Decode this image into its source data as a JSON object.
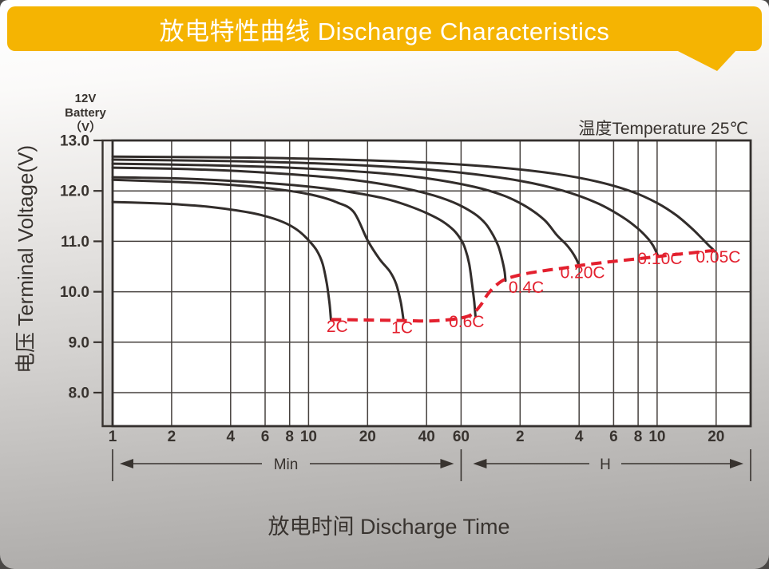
{
  "header": {
    "title": "放电特性曲线 Discharge Characteristics",
    "banner_color": "#F5B402",
    "text_color": "#FFFFFF"
  },
  "chart_data": {
    "type": "line",
    "title_note": "温度Temperature 25℃",
    "battery_label": [
      "12V",
      "Battery",
      "（V）"
    ],
    "y_axis_label": "电压 Terminal Voltage(V)",
    "x_axis_label": "放电时间 Discharge Time",
    "x_unit_left": "Min",
    "x_unit_right": "H",
    "x_scale": "log",
    "x_range_min": [
      1,
      1800
    ],
    "y_range": [
      7.3,
      13.0
    ],
    "grid": true,
    "x_gridlines_min": [
      1,
      2,
      4,
      6,
      8,
      10,
      20,
      40,
      60,
      120,
      240,
      360,
      480,
      600,
      1200
    ],
    "x_ticks": [
      {
        "t": 1,
        "label": "1"
      },
      {
        "t": 2,
        "label": "2"
      },
      {
        "t": 4,
        "label": "4"
      },
      {
        "t": 6,
        "label": "6"
      },
      {
        "t": 8,
        "label": "8"
      },
      {
        "t": 10,
        "label": "10"
      },
      {
        "t": 20,
        "label": "20"
      },
      {
        "t": 40,
        "label": "40"
      },
      {
        "t": 60,
        "label": "60"
      },
      {
        "t": 120,
        "label": "2"
      },
      {
        "t": 240,
        "label": "4"
      },
      {
        "t": 360,
        "label": "6"
      },
      {
        "t": 480,
        "label": "8"
      },
      {
        "t": 600,
        "label": "10"
      },
      {
        "t": 1200,
        "label": "20"
      }
    ],
    "y_ticks": [
      {
        "v": 13.0,
        "label": "13.0"
      },
      {
        "v": 12.0,
        "label": "12.0"
      },
      {
        "v": 11.0,
        "label": "11.0"
      },
      {
        "v": 10.0,
        "label": "10.0"
      },
      {
        "v": 9.0,
        "label": "9.0"
      },
      {
        "v": 8.0,
        "label": "8.0"
      }
    ],
    "colors": {
      "curve": "#322d2b",
      "grid": "#46413e",
      "cutoff": "#e3202e",
      "text": "#38332f"
    },
    "series": [
      {
        "name": "2C",
        "label_t": 14,
        "label_v": 9.2,
        "points": [
          [
            1,
            11.78
          ],
          [
            1.5,
            11.76
          ],
          [
            2,
            11.74
          ],
          [
            3,
            11.69
          ],
          [
            4,
            11.63
          ],
          [
            5,
            11.57
          ],
          [
            6,
            11.5
          ],
          [
            7,
            11.42
          ],
          [
            8,
            11.32
          ],
          [
            9,
            11.19
          ],
          [
            10,
            11.02
          ],
          [
            11,
            10.82
          ],
          [
            11.8,
            10.55
          ],
          [
            12.4,
            10.15
          ],
          [
            12.8,
            9.75
          ],
          [
            13,
            9.45
          ]
        ]
      },
      {
        "name": "1C",
        "label_t": 30,
        "label_v": 9.18,
        "points": [
          [
            1,
            12.22
          ],
          [
            2,
            12.18
          ],
          [
            3,
            12.15
          ],
          [
            5,
            12.09
          ],
          [
            8,
            12.0
          ],
          [
            11,
            11.9
          ],
          [
            14,
            11.77
          ],
          [
            17,
            11.58
          ],
          [
            20,
            11.02
          ],
          [
            23,
            10.65
          ],
          [
            26,
            10.4
          ],
          [
            28,
            10.15
          ],
          [
            29.5,
            9.8
          ],
          [
            30.5,
            9.44
          ]
        ]
      },
      {
        "name": "0.6C",
        "label_t": 64,
        "label_v": 9.3,
        "points": [
          [
            1,
            12.27
          ],
          [
            2,
            12.25
          ],
          [
            4,
            12.2
          ],
          [
            7,
            12.14
          ],
          [
            12,
            12.05
          ],
          [
            18,
            11.95
          ],
          [
            25,
            11.84
          ],
          [
            32,
            11.71
          ],
          [
            40,
            11.56
          ],
          [
            48,
            11.4
          ],
          [
            55,
            11.22
          ],
          [
            60,
            11.03
          ],
          [
            63,
            10.85
          ],
          [
            66,
            10.55
          ],
          [
            68.5,
            10.1
          ],
          [
            70,
            9.8
          ],
          [
            71,
            9.52
          ]
        ]
      },
      {
        "name": "0.4C",
        "label_t": 129,
        "label_v": 9.98,
        "points": [
          [
            1,
            12.46
          ],
          [
            2,
            12.44
          ],
          [
            4,
            12.4
          ],
          [
            8,
            12.33
          ],
          [
            15,
            12.24
          ],
          [
            25,
            12.12
          ],
          [
            40,
            11.95
          ],
          [
            55,
            11.77
          ],
          [
            70,
            11.55
          ],
          [
            80,
            11.35
          ],
          [
            88,
            11.1
          ],
          [
            93,
            10.9
          ],
          [
            97,
            10.65
          ],
          [
            100,
            10.4
          ],
          [
            101,
            10.22
          ]
        ]
      },
      {
        "name": "0.20C",
        "label_t": 250,
        "label_v": 10.27,
        "points": [
          [
            1,
            12.54
          ],
          [
            3,
            12.51
          ],
          [
            8,
            12.46
          ],
          [
            20,
            12.37
          ],
          [
            40,
            12.25
          ],
          [
            70,
            12.08
          ],
          [
            100,
            11.9
          ],
          [
            130,
            11.68
          ],
          [
            160,
            11.42
          ],
          [
            185,
            11.12
          ],
          [
            205,
            10.95
          ],
          [
            220,
            10.8
          ],
          [
            232,
            10.65
          ],
          [
            241,
            10.5
          ]
        ]
      },
      {
        "name": "0.10C",
        "label_t": 620,
        "label_v": 10.55,
        "points": [
          [
            1,
            12.62
          ],
          [
            4,
            12.59
          ],
          [
            12,
            12.54
          ],
          [
            30,
            12.46
          ],
          [
            60,
            12.36
          ],
          [
            120,
            12.2
          ],
          [
            200,
            12.0
          ],
          [
            300,
            11.75
          ],
          [
            400,
            11.48
          ],
          [
            480,
            11.25
          ],
          [
            540,
            11.05
          ],
          [
            575,
            10.9
          ],
          [
            595,
            10.78
          ],
          [
            608,
            10.7
          ]
        ]
      },
      {
        "name": "0.05C",
        "label_t": 1230,
        "label_v": 10.58,
        "points": [
          [
            1,
            12.68
          ],
          [
            5,
            12.66
          ],
          [
            15,
            12.62
          ],
          [
            40,
            12.56
          ],
          [
            90,
            12.47
          ],
          [
            180,
            12.34
          ],
          [
            300,
            12.18
          ],
          [
            450,
            11.98
          ],
          [
            600,
            11.76
          ],
          [
            750,
            11.52
          ],
          [
            900,
            11.26
          ],
          [
            1020,
            11.05
          ],
          [
            1100,
            10.92
          ],
          [
            1150,
            10.85
          ],
          [
            1178,
            10.8
          ]
        ]
      }
    ],
    "cutoff_line": {
      "style": "dashed",
      "color": "#e3202e",
      "points": [
        [
          13,
          9.45
        ],
        [
          20,
          9.44
        ],
        [
          30,
          9.43
        ],
        [
          40,
          9.42
        ],
        [
          50,
          9.44
        ],
        [
          60,
          9.48
        ],
        [
          68,
          9.55
        ],
        [
          75,
          9.72
        ],
        [
          82,
          9.95
        ],
        [
          90,
          10.12
        ],
        [
          101,
          10.25
        ],
        [
          125,
          10.35
        ],
        [
          160,
          10.42
        ],
        [
          200,
          10.47
        ],
        [
          241,
          10.52
        ],
        [
          320,
          10.58
        ],
        [
          420,
          10.63
        ],
        [
          520,
          10.67
        ],
        [
          608,
          10.7
        ],
        [
          750,
          10.74
        ],
        [
          900,
          10.77
        ],
        [
          1050,
          10.8
        ],
        [
          1178,
          10.82
        ]
      ]
    }
  }
}
